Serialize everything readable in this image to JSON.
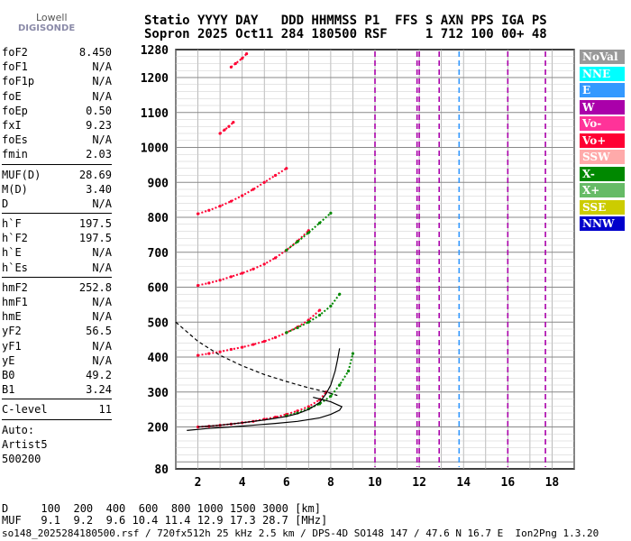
{
  "logo": {
    "top": "Lowell",
    "bottom": "DIGISONDE"
  },
  "header": {
    "line1": "Statio YYYY DAY   DDD HHMMSS P1  FFS S AXN PPS IGA PS",
    "line2": "Sopron 2025 Oct11 284 180500 RSF     1 712 100 00+ 48"
  },
  "params": [
    {
      "label": "foF2",
      "value": "8.450"
    },
    {
      "label": "foF1",
      "value": "N/A"
    },
    {
      "label": "foF1p",
      "value": "N/A"
    },
    {
      "label": "foE",
      "value": "N/A"
    },
    {
      "label": "foEp",
      "value": "0.50"
    },
    {
      "label": "fxI",
      "value": "9.23"
    },
    {
      "label": "foEs",
      "value": "N/A"
    },
    {
      "label": "fmin",
      "value": "2.03"
    },
    {
      "label": "MUF(D)",
      "value": "28.69"
    },
    {
      "label": "M(D)",
      "value": "3.40"
    },
    {
      "label": "D",
      "value": "N/A"
    },
    {
      "label": "h`F",
      "value": "197.5"
    },
    {
      "label": "h`F2",
      "value": "197.5"
    },
    {
      "label": "h`E",
      "value": "N/A"
    },
    {
      "label": "h`Es",
      "value": "N/A"
    },
    {
      "label": "hmF2",
      "value": "252.8"
    },
    {
      "label": "hmF1",
      "value": "N/A"
    },
    {
      "label": "hmE",
      "value": "N/A"
    },
    {
      "label": "yF2",
      "value": "56.5"
    },
    {
      "label": "yF1",
      "value": "N/A"
    },
    {
      "label": "yE",
      "value": "N/A"
    },
    {
      "label": "B0",
      "value": "49.2"
    },
    {
      "label": "B1",
      "value": "3.24"
    },
    {
      "label": "C-level",
      "value": "11"
    }
  ],
  "autoscaling": {
    "line1": "Auto:",
    "line2": "Artist5",
    "line3": "500200"
  },
  "legend": [
    {
      "label": "NoVal",
      "color": "#999999"
    },
    {
      "label": "NNE",
      "color": "#00ffff"
    },
    {
      "label": "E",
      "color": "#3399ff"
    },
    {
      "label": "W",
      "color": "#aa00aa"
    },
    {
      "label": "Vo-",
      "color": "#ff3399"
    },
    {
      "label": "Vo+",
      "color": "#ff0033"
    },
    {
      "label": "SSW",
      "color": "#ffaaaa"
    },
    {
      "label": "X-",
      "color": "#008800"
    },
    {
      "label": "X+",
      "color": "#66bb66"
    },
    {
      "label": "SSE",
      "color": "#cccc00"
    },
    {
      "label": "NNW",
      "color": "#0000cc"
    }
  ],
  "footer": {
    "d_line": "D     100  200  400  600  800 1000 1500 3000 [km]",
    "muf_line": "MUF   9.1  9.2  9.6 10.4 11.4 12.9 17.3 28.7 [MHz]",
    "file_line": "so148_2025284180500.rsf / 720fx512h 25 kHz 2.5 km / DPS-4D SO148 147 / 47.6 N 16.7 E  Ion2Png 1.3.20"
  },
  "chart_data": {
    "type": "scatter",
    "xlim": [
      1,
      19
    ],
    "ylim": [
      80,
      1280
    ],
    "x_ticks": [
      2,
      4,
      6,
      8,
      10,
      12,
      14,
      16,
      18
    ],
    "y_ticks": [
      80,
      200,
      300,
      400,
      500,
      600,
      700,
      800,
      900,
      1000,
      1100,
      1200,
      1280
    ],
    "grid": true,
    "series": [
      {
        "name": "Vo+",
        "color": "#ff0033",
        "x": [
          2.0,
          2.5,
          3.0,
          3.5,
          4.0,
          4.5,
          5.0,
          5.5,
          6.0,
          6.5,
          7.0,
          7.5,
          7.8
        ],
        "y": [
          200,
          202,
          205,
          208,
          212,
          216,
          222,
          228,
          236,
          246,
          258,
          278,
          300
        ]
      },
      {
        "name": "Vo+",
        "color": "#ff0033",
        "x": [
          2.0,
          2.5,
          3.0,
          3.5,
          4.0,
          4.5,
          5.0,
          5.5,
          6.0,
          6.5,
          7.0,
          7.5
        ],
        "y": [
          405,
          410,
          415,
          422,
          428,
          436,
          445,
          456,
          470,
          486,
          506,
          534
        ]
      },
      {
        "name": "Vo+",
        "color": "#ff0033",
        "x": [
          2.0,
          2.5,
          3.0,
          3.5,
          4.0,
          4.5,
          5.0,
          5.5,
          6.0,
          6.5,
          7.0
        ],
        "y": [
          605,
          612,
          620,
          630,
          640,
          652,
          666,
          684,
          706,
          732,
          762
        ]
      },
      {
        "name": "Vo+",
        "color": "#ff0033",
        "x": [
          2.0,
          2.5,
          3.0,
          3.5,
          4.0,
          4.5,
          5.0,
          5.5,
          6.0
        ],
        "y": [
          810,
          820,
          832,
          846,
          862,
          880,
          900,
          920,
          940
        ]
      },
      {
        "name": "Vo+",
        "color": "#ff0033",
        "x": [
          3.0,
          3.2,
          3.4,
          3.6
        ],
        "y": [
          1040,
          1050,
          1060,
          1072
        ]
      },
      {
        "name": "Vo+",
        "color": "#ff0033",
        "x": [
          3.5,
          3.7,
          4.0,
          4.2
        ],
        "y": [
          1230,
          1240,
          1255,
          1268
        ]
      },
      {
        "name": "X-",
        "color": "#008800",
        "x": [
          6.0,
          6.5,
          7.0,
          7.5,
          8.0,
          8.4,
          8.8,
          9.0
        ],
        "y": [
          232,
          240,
          252,
          266,
          288,
          320,
          360,
          410
        ]
      },
      {
        "name": "X-",
        "color": "#008800",
        "x": [
          6.0,
          6.5,
          7.0,
          7.5,
          8.0,
          8.4
        ],
        "y": [
          470,
          484,
          500,
          520,
          546,
          580
        ]
      },
      {
        "name": "X-",
        "color": "#008800",
        "x": [
          6.0,
          6.5,
          7.0,
          7.5,
          8.0
        ],
        "y": [
          706,
          730,
          756,
          784,
          812
        ]
      }
    ],
    "profile": {
      "name": "virtual",
      "color": "#000000",
      "x": [
        2.0,
        3.0,
        4.0,
        5.0,
        6.0,
        6.5,
        7.0,
        7.5,
        7.8,
        8.0,
        8.2,
        8.3,
        8.4
      ],
      "y": [
        200,
        205,
        212,
        220,
        230,
        238,
        250,
        270,
        296,
        320,
        360,
        390,
        425
      ]
    },
    "profile2": {
      "name": "true-height",
      "color": "#000000",
      "x": [
        1.5,
        2.5,
        3.5,
        4.5,
        5.5,
        6.5,
        7.5,
        8.0,
        8.4,
        8.5,
        8.0,
        7.2
      ],
      "y": [
        190,
        196,
        200,
        205,
        210,
        216,
        226,
        236,
        248,
        258,
        272,
        285
      ]
    },
    "dashed": {
      "name": "model",
      "color": "#000000",
      "x": [
        1.0,
        2.0,
        3.0,
        4.0,
        5.0,
        6.0,
        7.0,
        7.8,
        8.3
      ],
      "y": [
        500,
        445,
        405,
        375,
        350,
        330,
        312,
        300,
        290
      ]
    }
  }
}
